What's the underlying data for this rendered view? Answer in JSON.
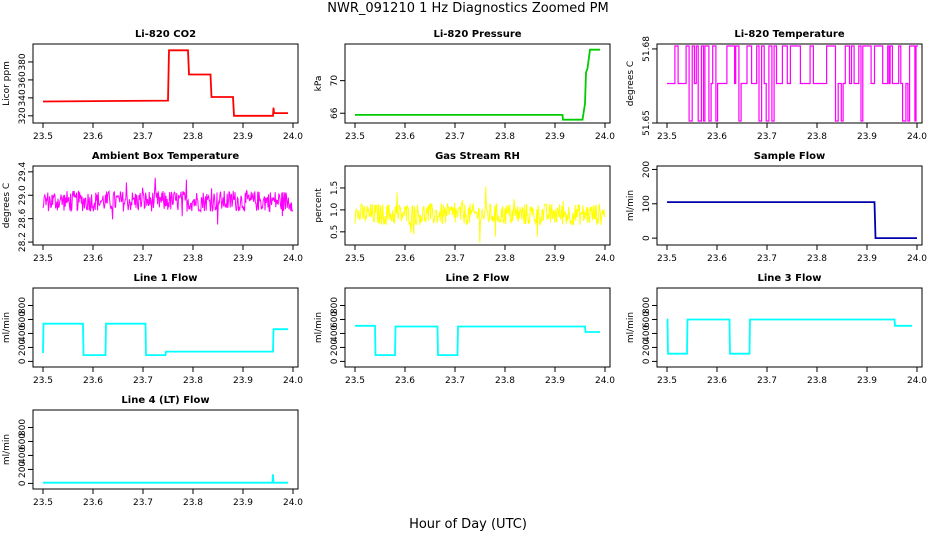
{
  "title": "NWR_091210  1 Hz Diagnostics Zoomed PM",
  "xlabel": "Hour of Day (UTC)",
  "chart_data": [
    {
      "id": "co2",
      "type": "line",
      "title": "Li-820 CO2",
      "ylabel": "Licor ppm",
      "color": "#ff0000",
      "ylim": [
        312,
        400
      ],
      "yticks": [
        "320",
        "340",
        "360",
        "380"
      ],
      "ytick_values": [
        320,
        340,
        360,
        380
      ],
      "xlim": [
        23.48,
        24.01
      ],
      "xticks": [
        "23.5",
        "23.6",
        "23.7",
        "23.8",
        "23.9",
        "24.0"
      ],
      "series": [
        {
          "name": "CO2",
          "x": [
            23.5,
            23.75,
            23.752,
            23.79,
            23.792,
            23.835,
            23.837,
            23.88,
            23.882,
            23.96,
            23.961,
            23.962,
            23.99
          ],
          "y": [
            336,
            337,
            393,
            393,
            366,
            366,
            341,
            341,
            320,
            320,
            329,
            323,
            323
          ]
        }
      ]
    },
    {
      "id": "pressure",
      "type": "line",
      "title": "Li-820 Pressure",
      "ylabel": "kPa",
      "color": "#00cc00",
      "ylim": [
        64.8,
        74.5
      ],
      "yticks": [
        "66",
        "70"
      ],
      "ytick_values": [
        66,
        70
      ],
      "xlim": [
        23.48,
        24.01
      ],
      "xticks": [
        "23.5",
        "23.6",
        "23.7",
        "23.8",
        "23.9",
        "24.0"
      ],
      "series": [
        {
          "name": "Pressure",
          "x": [
            23.5,
            23.915,
            23.916,
            23.955,
            23.96,
            23.962,
            23.965,
            23.97,
            23.99
          ],
          "y": [
            65.8,
            65.8,
            65.2,
            65.2,
            67.2,
            71.0,
            71.5,
            73.8,
            73.8
          ]
        }
      ]
    },
    {
      "id": "temperature",
      "type": "line",
      "title": "Li-820 Temperature",
      "ylabel": "degrees C",
      "color": "#ff00ff",
      "ylim": [
        51.65,
        51.682
      ],
      "yticks": [
        "51.65",
        "51.68"
      ],
      "ytick_values": [
        51.65,
        51.68
      ],
      "xlim": [
        23.48,
        24.01
      ],
      "xticks": [
        "23.5",
        "23.6",
        "23.7",
        "23.8",
        "23.9",
        "24.0"
      ],
      "series": [
        {
          "name": "Temperature",
          "x": [
            23.5,
            24.0
          ],
          "y": [
            51.666,
            51.666
          ]
        }
      ]
    },
    {
      "id": "box-temp",
      "type": "line",
      "title": "Ambient Box Temperature",
      "ylabel": "degrees C",
      "color": "#ff00ff",
      "ylim": [
        28.15,
        29.5
      ],
      "yticks": [
        "28.2",
        "28.6",
        "29.0",
        "29.4"
      ],
      "ytick_values": [
        28.2,
        28.6,
        29.0,
        29.4
      ],
      "xlim": [
        23.48,
        24.01
      ],
      "xticks": [
        "23.5",
        "23.6",
        "23.7",
        "23.8",
        "23.9",
        "24.0"
      ],
      "series": [
        {
          "name": "Box Temp",
          "x": [
            23.5,
            24.0
          ],
          "y": [
            28.9,
            28.85
          ]
        }
      ]
    },
    {
      "id": "rh",
      "type": "line",
      "title": "Gas Stream RH",
      "ylabel": "percent",
      "color": "#ffff00",
      "ylim": [
        0.2,
        2.0
      ],
      "yticks": [
        "0.5",
        "1.0",
        "1.5"
      ],
      "ytick_values": [
        0.5,
        1.0,
        1.5
      ],
      "xlim": [
        23.48,
        24.01
      ],
      "xticks": [
        "23.5",
        "23.6",
        "23.7",
        "23.8",
        "23.9",
        "24.0"
      ],
      "series": [
        {
          "name": "RH",
          "x": [
            23.5,
            24.0
          ],
          "y": [
            0.9,
            0.9
          ]
        }
      ]
    },
    {
      "id": "sample-flow",
      "type": "line",
      "title": "Sample Flow",
      "ylabel": "ml/min",
      "color": "#0000aa",
      "ylim": [
        -20,
        210
      ],
      "yticks": [
        "0",
        "100",
        "200"
      ],
      "ytick_values": [
        0,
        100,
        200
      ],
      "xlim": [
        23.48,
        24.01
      ],
      "xticks": [
        "23.5",
        "23.6",
        "23.7",
        "23.8",
        "23.9",
        "24.0"
      ],
      "series": [
        {
          "name": "Sample Flow",
          "x": [
            23.5,
            23.915,
            23.917,
            24.0
          ],
          "y": [
            105,
            105,
            0,
            0
          ]
        }
      ]
    },
    {
      "id": "line1",
      "type": "line",
      "title": "Line 1 Flow",
      "ylabel": "ml/min",
      "color": "#00ffff",
      "ylim": [
        -80,
        1050
      ],
      "yticks": [
        "0",
        "200",
        "400",
        "600",
        "800"
      ],
      "ytick_values": [
        0,
        200,
        400,
        600,
        800
      ],
      "xlim": [
        23.48,
        24.01
      ],
      "xticks": [
        "23.5",
        "23.6",
        "23.7",
        "23.8",
        "23.9",
        "24.0"
      ],
      "series": [
        {
          "name": "Line 1",
          "x": [
            23.5,
            23.501,
            23.502,
            23.58,
            23.581,
            23.625,
            23.626,
            23.705,
            23.706,
            23.745,
            23.746,
            23.96,
            23.961,
            23.99
          ],
          "y": [
            120,
            540,
            540,
            540,
            90,
            90,
            540,
            540,
            90,
            90,
            140,
            140,
            460,
            460
          ]
        }
      ]
    },
    {
      "id": "line2",
      "type": "line",
      "title": "Line 2 Flow",
      "ylabel": "ml/min",
      "color": "#00ffff",
      "ylim": [
        -80,
        1050
      ],
      "yticks": [
        "0",
        "200",
        "400",
        "600",
        "800"
      ],
      "ytick_values": [
        0,
        200,
        400,
        600,
        800
      ],
      "xlim": [
        23.48,
        24.01
      ],
      "xticks": [
        "23.5",
        "23.6",
        "23.7",
        "23.8",
        "23.9",
        "24.0"
      ],
      "series": [
        {
          "name": "Line 2",
          "x": [
            23.5,
            23.54,
            23.541,
            23.58,
            23.581,
            23.665,
            23.666,
            23.705,
            23.706,
            23.96,
            23.961,
            23.99
          ],
          "y": [
            510,
            510,
            90,
            90,
            500,
            500,
            90,
            90,
            500,
            500,
            420,
            420
          ]
        }
      ]
    },
    {
      "id": "line3",
      "type": "line",
      "title": "Line 3 Flow",
      "ylabel": "ml/min",
      "color": "#00ffff",
      "ylim": [
        -80,
        1050
      ],
      "yticks": [
        "0",
        "200",
        "400",
        "600",
        "800"
      ],
      "ytick_values": [
        0,
        200,
        400,
        600,
        800
      ],
      "xlim": [
        23.48,
        24.01
      ],
      "xticks": [
        "23.5",
        "23.6",
        "23.7",
        "23.8",
        "23.9",
        "24.0"
      ],
      "series": [
        {
          "name": "Line 3",
          "x": [
            23.5,
            23.501,
            23.502,
            23.54,
            23.541,
            23.625,
            23.626,
            23.665,
            23.666,
            23.955,
            23.956,
            23.99
          ],
          "y": [
            600,
            600,
            110,
            110,
            600,
            600,
            110,
            110,
            600,
            600,
            510,
            510
          ]
        }
      ]
    },
    {
      "id": "line4",
      "type": "line",
      "title": "Line 4 (LT) Flow",
      "ylabel": "ml/min",
      "color": "#00ffff",
      "ylim": [
        -80,
        1050
      ],
      "yticks": [
        "0",
        "200",
        "400",
        "600",
        "800"
      ],
      "ytick_values": [
        0,
        200,
        400,
        600,
        800
      ],
      "xlim": [
        23.48,
        24.01
      ],
      "xticks": [
        "23.5",
        "23.6",
        "23.7",
        "23.8",
        "23.9",
        "24.0"
      ],
      "series": [
        {
          "name": "Line 4",
          "x": [
            23.5,
            23.959,
            23.96,
            23.961,
            23.99
          ],
          "y": [
            10,
            10,
            130,
            10,
            10
          ]
        }
      ]
    }
  ]
}
